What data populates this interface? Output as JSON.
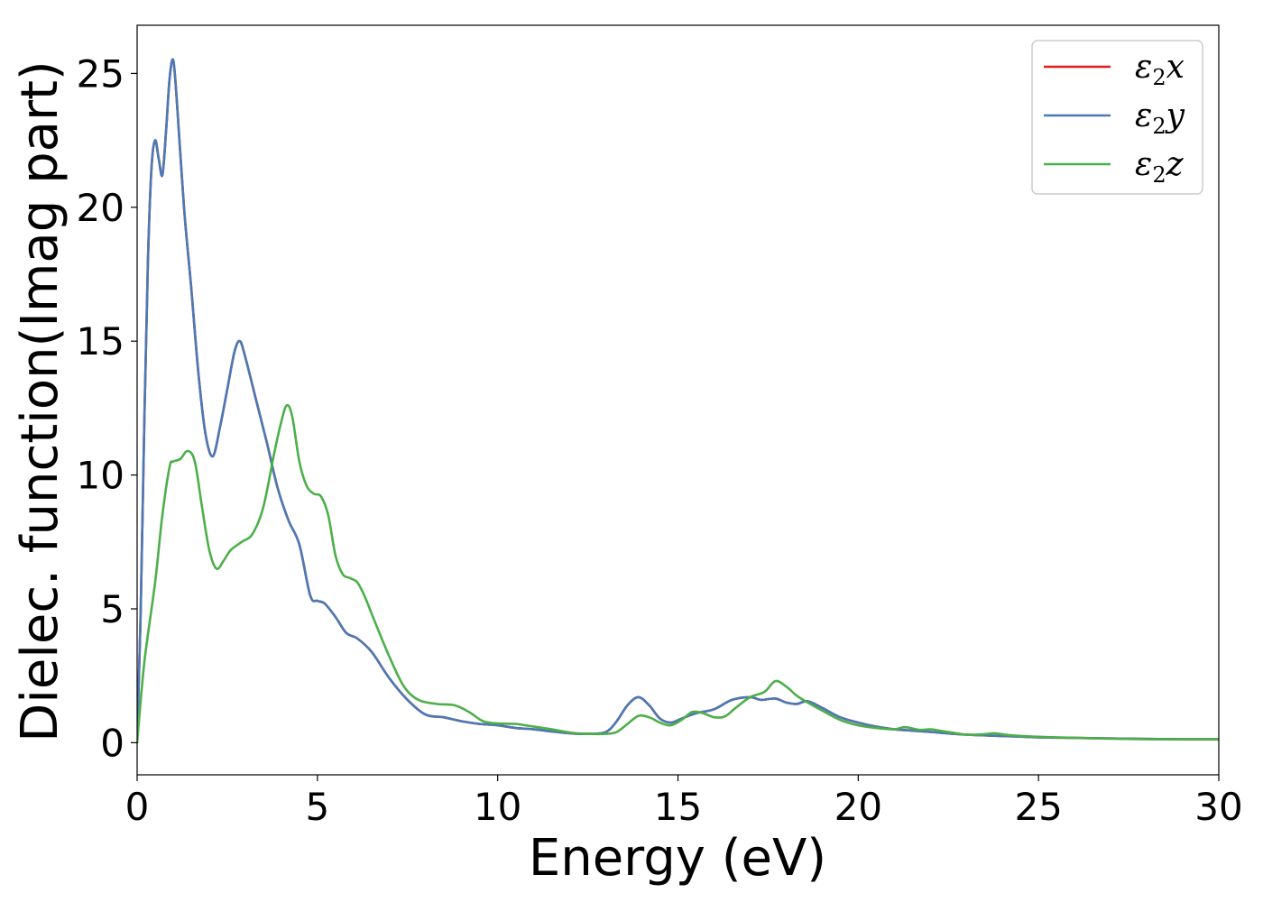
{
  "chart_data": {
    "type": "line",
    "title": "",
    "xlabel": "Energy (eV)",
    "ylabel": "Dielec. function(Imag part)",
    "xlim": [
      0,
      30
    ],
    "ylim": [
      -1.2,
      26.8
    ],
    "xticks": [
      0,
      5,
      10,
      15,
      20,
      25,
      30
    ],
    "yticks": [
      0,
      5,
      10,
      15,
      20,
      25
    ],
    "legend_position": "top-right",
    "grid": false,
    "series": [
      {
        "name": "ε₂x",
        "legend_base": "ε",
        "legend_sub": "2",
        "legend_suffix": "x",
        "color": "#e41a1c",
        "x": [
          0,
          0.1,
          0.2,
          0.3,
          0.4,
          0.5,
          0.6,
          0.7,
          0.8,
          0.9,
          1.0,
          1.1,
          1.3,
          1.5,
          1.7,
          1.9,
          2.1,
          2.3,
          2.5,
          2.7,
          2.85,
          3.0,
          3.3,
          3.6,
          3.9,
          4.2,
          4.5,
          4.8,
          5.0,
          5.2,
          5.5,
          5.8,
          6.1,
          6.5,
          7.0,
          7.5,
          8.0,
          8.5,
          9.0,
          9.5,
          10.0,
          10.5,
          11.0,
          11.5,
          12.0,
          12.5,
          13.0,
          13.3,
          13.6,
          13.9,
          14.2,
          14.5,
          14.8,
          15.1,
          15.5,
          16.0,
          16.5,
          17.0,
          17.3,
          17.7,
          18.0,
          18.3,
          18.6,
          19.0,
          19.5,
          20.0,
          20.5,
          21.0,
          21.5,
          22.0,
          23.0,
          24.0,
          25.0,
          26.0,
          27.0,
          28.0,
          29.0,
          30.0
        ],
        "values": [
          0,
          5.0,
          12.0,
          18.0,
          21.5,
          22.5,
          21.8,
          21.2,
          22.8,
          24.8,
          25.5,
          24.0,
          20.0,
          17.0,
          13.8,
          11.5,
          10.7,
          11.8,
          13.2,
          14.6,
          15.0,
          14.4,
          12.8,
          11.2,
          9.5,
          8.3,
          7.4,
          5.5,
          5.3,
          5.2,
          4.7,
          4.1,
          3.9,
          3.4,
          2.4,
          1.6,
          1.05,
          0.95,
          0.8,
          0.7,
          0.65,
          0.55,
          0.5,
          0.42,
          0.35,
          0.33,
          0.4,
          0.8,
          1.4,
          1.7,
          1.4,
          0.9,
          0.75,
          0.9,
          1.1,
          1.25,
          1.6,
          1.7,
          1.6,
          1.65,
          1.5,
          1.45,
          1.55,
          1.3,
          0.95,
          0.75,
          0.6,
          0.5,
          0.45,
          0.4,
          0.3,
          0.25,
          0.2,
          0.18,
          0.16,
          0.14,
          0.13,
          0.13
        ]
      },
      {
        "name": "ε₂y",
        "legend_base": "ε",
        "legend_sub": "2",
        "legend_suffix": "y",
        "color": "#4a7ab5",
        "x": [
          0,
          0.1,
          0.2,
          0.3,
          0.4,
          0.5,
          0.6,
          0.7,
          0.8,
          0.9,
          1.0,
          1.1,
          1.3,
          1.5,
          1.7,
          1.9,
          2.1,
          2.3,
          2.5,
          2.7,
          2.85,
          3.0,
          3.3,
          3.6,
          3.9,
          4.2,
          4.5,
          4.8,
          5.0,
          5.2,
          5.5,
          5.8,
          6.1,
          6.5,
          7.0,
          7.5,
          8.0,
          8.5,
          9.0,
          9.5,
          10.0,
          10.5,
          11.0,
          11.5,
          12.0,
          12.5,
          13.0,
          13.3,
          13.6,
          13.9,
          14.2,
          14.5,
          14.8,
          15.1,
          15.5,
          16.0,
          16.5,
          17.0,
          17.3,
          17.7,
          18.0,
          18.3,
          18.6,
          19.0,
          19.5,
          20.0,
          20.5,
          21.0,
          21.5,
          22.0,
          23.0,
          24.0,
          25.0,
          26.0,
          27.0,
          28.0,
          29.0,
          30.0
        ],
        "values": [
          0,
          5.0,
          12.0,
          18.0,
          21.5,
          22.5,
          21.8,
          21.2,
          22.8,
          24.8,
          25.5,
          24.0,
          20.0,
          17.0,
          13.8,
          11.5,
          10.7,
          11.8,
          13.2,
          14.6,
          15.0,
          14.4,
          12.8,
          11.2,
          9.5,
          8.3,
          7.4,
          5.5,
          5.3,
          5.2,
          4.7,
          4.1,
          3.9,
          3.4,
          2.4,
          1.6,
          1.05,
          0.95,
          0.8,
          0.7,
          0.65,
          0.55,
          0.5,
          0.42,
          0.35,
          0.33,
          0.4,
          0.8,
          1.4,
          1.7,
          1.4,
          0.9,
          0.75,
          0.9,
          1.1,
          1.25,
          1.6,
          1.7,
          1.6,
          1.65,
          1.5,
          1.45,
          1.55,
          1.3,
          0.95,
          0.75,
          0.6,
          0.5,
          0.45,
          0.4,
          0.3,
          0.25,
          0.2,
          0.18,
          0.16,
          0.14,
          0.13,
          0.13
        ]
      },
      {
        "name": "ε₂z",
        "legend_base": "ε",
        "legend_sub": "2",
        "legend_suffix": "z",
        "color": "#4daf4a",
        "x": [
          0,
          0.2,
          0.5,
          0.7,
          0.9,
          1.0,
          1.2,
          1.4,
          1.6,
          1.8,
          2.0,
          2.2,
          2.4,
          2.6,
          2.9,
          3.2,
          3.5,
          3.8,
          4.0,
          4.15,
          4.3,
          4.5,
          4.7,
          4.9,
          5.1,
          5.3,
          5.5,
          5.7,
          5.9,
          6.1,
          6.3,
          6.6,
          7.0,
          7.4,
          7.8,
          8.3,
          8.8,
          9.2,
          9.6,
          10.0,
          10.5,
          11.0,
          11.5,
          12.0,
          12.5,
          13.0,
          13.3,
          13.6,
          13.9,
          14.2,
          14.5,
          14.8,
          15.1,
          15.4,
          15.7,
          16.0,
          16.3,
          16.6,
          17.0,
          17.4,
          17.7,
          18.0,
          18.3,
          18.6,
          19.0,
          19.5,
          20.0,
          20.5,
          21.0,
          21.3,
          21.7,
          22.0,
          22.4,
          23.0,
          23.5,
          23.8,
          24.2,
          25.0,
          26.0,
          27.0,
          28.0,
          29.0,
          30.0
        ],
        "values": [
          0,
          3.0,
          6.0,
          8.5,
          10.3,
          10.5,
          10.6,
          10.9,
          10.5,
          8.8,
          7.2,
          6.5,
          6.8,
          7.2,
          7.5,
          7.8,
          8.8,
          10.8,
          12.0,
          12.6,
          12.2,
          10.5,
          9.6,
          9.3,
          9.2,
          8.5,
          7.0,
          6.3,
          6.15,
          6.0,
          5.5,
          4.5,
          3.2,
          2.1,
          1.6,
          1.45,
          1.4,
          1.15,
          0.8,
          0.72,
          0.7,
          0.6,
          0.5,
          0.38,
          0.33,
          0.33,
          0.4,
          0.7,
          1.0,
          0.95,
          0.75,
          0.65,
          0.85,
          1.15,
          1.1,
          0.95,
          0.98,
          1.3,
          1.7,
          1.9,
          2.3,
          2.1,
          1.75,
          1.5,
          1.2,
          0.85,
          0.65,
          0.55,
          0.5,
          0.58,
          0.48,
          0.5,
          0.42,
          0.3,
          0.32,
          0.35,
          0.28,
          0.22,
          0.18,
          0.15,
          0.13,
          0.12,
          0.12
        ]
      }
    ]
  }
}
